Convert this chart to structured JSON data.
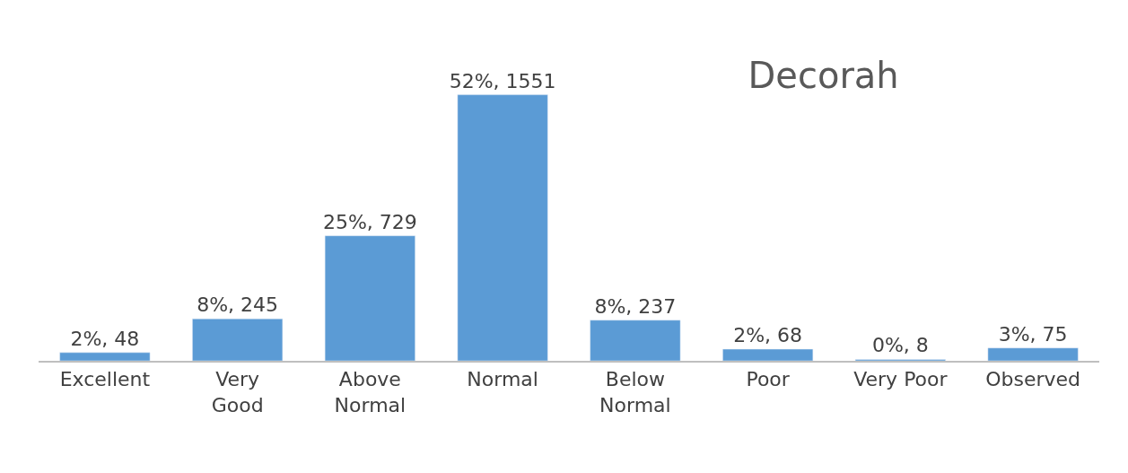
{
  "chart_data": {
    "type": "bar",
    "title": "Decorah",
    "categories": [
      "Excellent",
      "Very\nGood",
      "Above\nNormal",
      "Normal",
      "Below\nNormal",
      "Poor",
      "Very Poor",
      "Observed"
    ],
    "values": [
      48,
      245,
      729,
      1551,
      237,
      68,
      8,
      75
    ],
    "value_labels": [
      "2%, 48",
      "8%, 245",
      "25%, 729",
      "52%, 1551",
      "8%, 237",
      "2%, 68",
      "0%, 8",
      "3%, 75"
    ],
    "color": "#5b9bd5"
  }
}
